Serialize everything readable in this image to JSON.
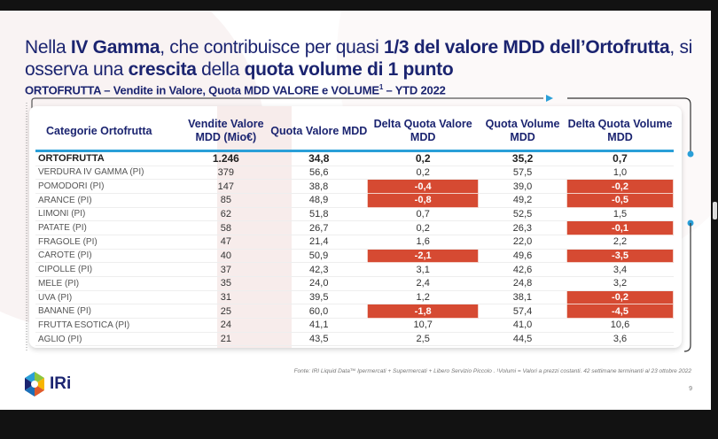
{
  "title": {
    "p1": "Nella ",
    "b1": "IV Gamma",
    "p2": ", che contribuisce per quasi ",
    "b2": "1/3 del valore MDD dell’Ortofrutta",
    "p3": ", si osserva una ",
    "b3": "crescita",
    "p4": " della ",
    "b4": "quota volume di 1 punto"
  },
  "subtitle": {
    "text": "ORTOFRUTTA – Vendite in Valore, Quota MDD VALORE e VOLUME",
    "sup": "1",
    "tail": " – YTD 2022"
  },
  "table": {
    "headers": [
      "Categorie Ortofrutta",
      "Vendite Valore MDD (Mio€)",
      "Quota Valore MDD",
      "Delta Quota Valore MDD",
      "Quota Volume MDD",
      "Delta Quota Volume MDD"
    ],
    "total": [
      "ORTOFRUTTA",
      "1.246",
      "34,8",
      "0,2",
      "35,2",
      "0,7"
    ],
    "rows": [
      [
        "VERDURA IV GAMMA (PI)",
        "379",
        "56,6",
        "0,2",
        "57,5",
        "1,0"
      ],
      [
        "POMODORI (PI)",
        "147",
        "38,8",
        "-0,4",
        "39,0",
        "-0,2"
      ],
      [
        "ARANCE (PI)",
        "85",
        "48,9",
        "-0,8",
        "49,2",
        "-0,5"
      ],
      [
        "LIMONI (PI)",
        "62",
        "51,8",
        "0,7",
        "52,5",
        "1,5"
      ],
      [
        "PATATE (PI)",
        "58",
        "26,7",
        "0,2",
        "26,3",
        "-0,1"
      ],
      [
        "FRAGOLE (PI)",
        "47",
        "21,4",
        "1,6",
        "22,0",
        "2,2"
      ],
      [
        "CAROTE (PI)",
        "40",
        "50,9",
        "-2,1",
        "49,6",
        "-3,5"
      ],
      [
        "CIPOLLE (PI)",
        "37",
        "42,3",
        "3,1",
        "42,6",
        "3,4"
      ],
      [
        "MELE (PI)",
        "35",
        "24,0",
        "2,4",
        "24,8",
        "3,2"
      ],
      [
        "UVA (PI)",
        "31",
        "39,5",
        "1,2",
        "38,1",
        "-0,2"
      ],
      [
        "BANANE (PI)",
        "25",
        "60,0",
        "-1,8",
        "57,4",
        "-4,5"
      ],
      [
        "FRUTTA ESOTICA (PI)",
        "24",
        "41,1",
        "10,7",
        "41,0",
        "10,6"
      ],
      [
        "AGLIO (PI)",
        "21",
        "43,5",
        "2,5",
        "44,5",
        "3,6"
      ]
    ]
  },
  "footer": "Fonte: IRI Liquid Data™ Ipermercati + Supermercati + Libero Servizio Piccolo . ¹Volumi = Valori a prezzi costanti. 42 settimane terminanti al 23 ottobre 2022",
  "page_number": "9",
  "logo": {
    "text": "IRi"
  },
  "colors": {
    "navy": "#1b2470",
    "accent_blue": "#2a9fd8",
    "negative_red": "#d64a32"
  }
}
